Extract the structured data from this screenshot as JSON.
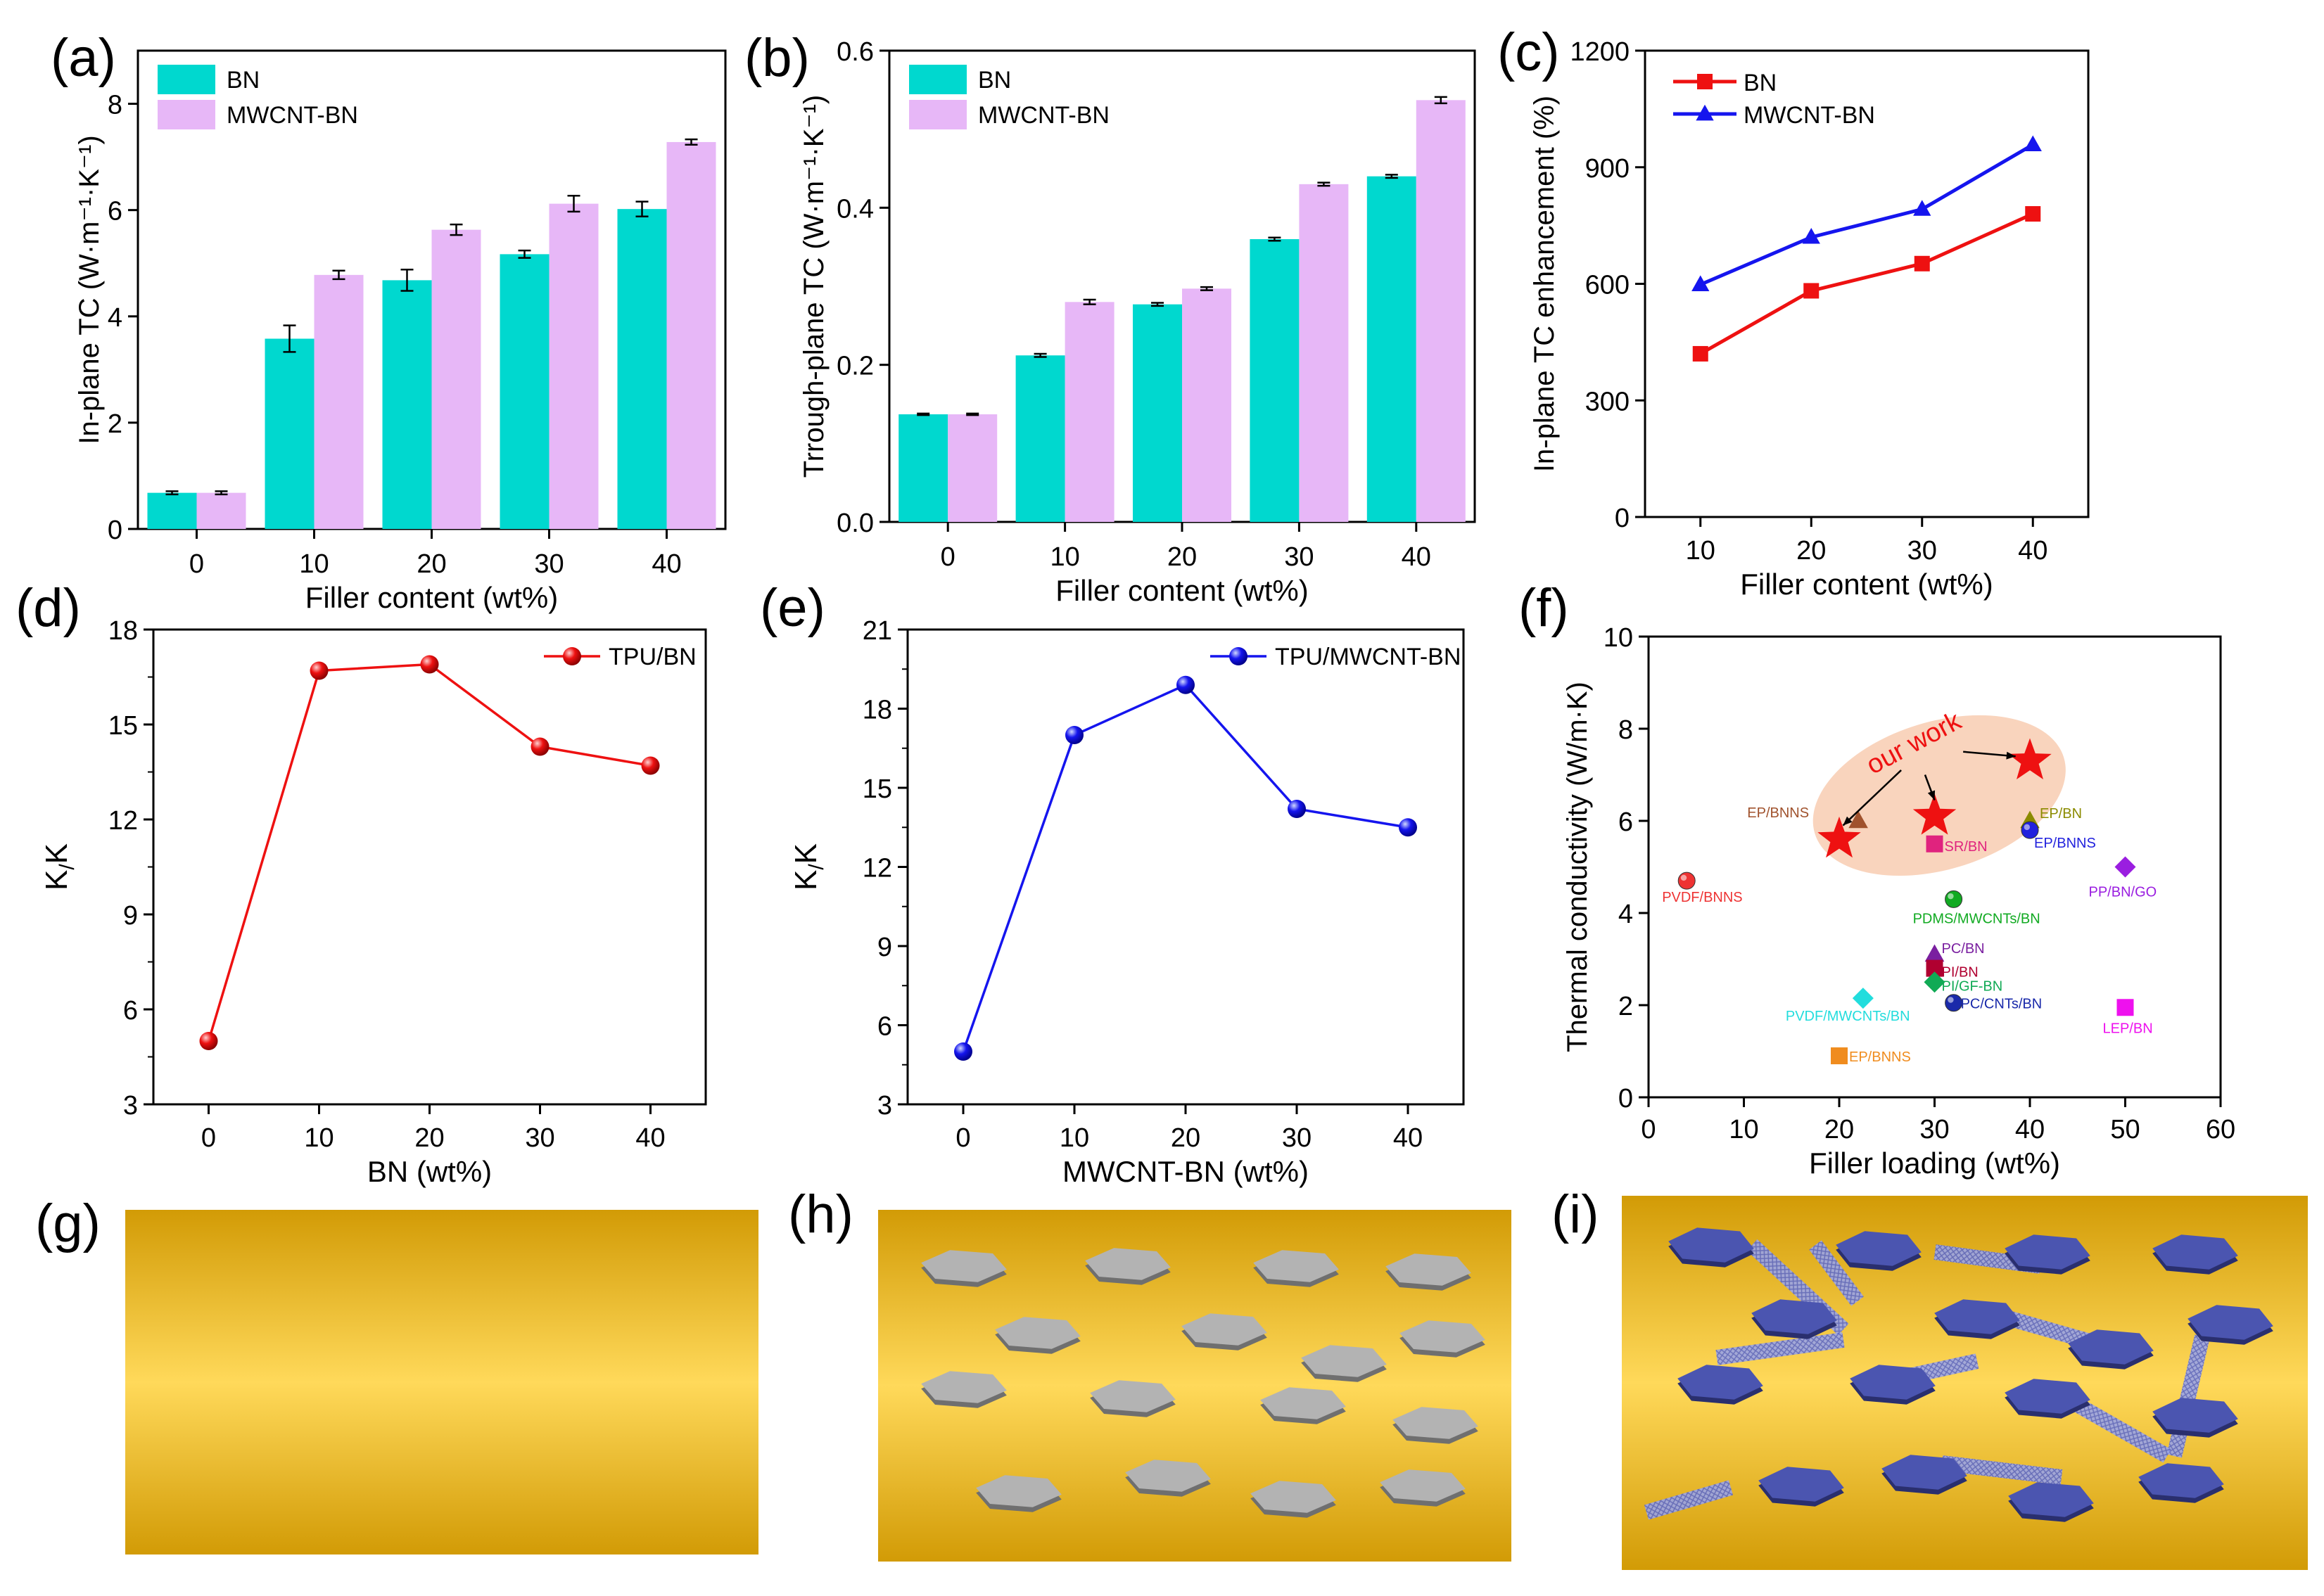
{
  "colors": {
    "bn_bar": "#00d8cf",
    "mw_bar": "#e7b7f7",
    "red": "#ee1111",
    "blue": "#1515ee",
    "gold_edge": "#d29b06",
    "gold_center": "#ffd95a"
  },
  "panel_labels": {
    "a": "(a)",
    "b": "(b)",
    "c": "(c)",
    "d": "(d)",
    "e": "(e)",
    "f": "(f)",
    "g": "(g)",
    "h": "(h)",
    "i": "(i)"
  },
  "chart_data": [
    {
      "id": "a",
      "type": "bar",
      "categories": [
        "0",
        "10",
        "20",
        "30",
        "40"
      ],
      "series": [
        {
          "name": "BN",
          "values": [
            0.68,
            3.58,
            4.68,
            5.17,
            6.02
          ],
          "errors": [
            0.03,
            0.25,
            0.2,
            0.07,
            0.14
          ]
        },
        {
          "name": "MWCNT-BN",
          "values": [
            0.68,
            4.78,
            5.63,
            6.12,
            7.28
          ],
          "errors": [
            0.03,
            0.08,
            0.1,
            0.15,
            0.05
          ]
        }
      ],
      "xlabel": "Filler content (wt%)",
      "ylabel": "In-plane TC (W·m⁻¹·K⁻¹)",
      "ylim": [
        0,
        9
      ],
      "yticks": [
        "0",
        "2",
        "4",
        "6",
        "8"
      ],
      "legend": "top-left"
    },
    {
      "id": "b",
      "type": "bar",
      "categories": [
        "0",
        "10",
        "20",
        "30",
        "40"
      ],
      "series": [
        {
          "name": "BN",
          "values": [
            0.137,
            0.212,
            0.277,
            0.36,
            0.44
          ],
          "errors": [
            0.001,
            0.002,
            0.002,
            0.002,
            0.002
          ]
        },
        {
          "name": "MWCNT-BN",
          "values": [
            0.137,
            0.28,
            0.297,
            0.43,
            0.537
          ],
          "errors": [
            0.001,
            0.003,
            0.002,
            0.002,
            0.004
          ]
        }
      ],
      "xlabel": "Filler content (wt%)",
      "ylabel": "Trrough-plane TC (W·m⁻¹·K⁻¹)",
      "ylim": [
        0,
        0.6
      ],
      "yticks": [
        "0.0",
        "0.2",
        "0.4",
        "0.6"
      ],
      "legend": "top-left"
    },
    {
      "id": "c",
      "type": "line",
      "x": [
        10,
        20,
        30,
        40
      ],
      "series": [
        {
          "name": "BN",
          "values": [
            420,
            582,
            652,
            780
          ]
        },
        {
          "name": "MWCNT-BN",
          "values": [
            598,
            720,
            792,
            958
          ]
        }
      ],
      "xlabel": "Filler content (wt%)",
      "ylabel": "In-plane TC enhancement (%)",
      "xlim": [
        5,
        45
      ],
      "ylim": [
        0,
        1200
      ],
      "xticks": [
        "10",
        "20",
        "30",
        "40"
      ],
      "yticks": [
        "0",
        "300",
        "600",
        "900",
        "1200"
      ],
      "legend": "top-left"
    },
    {
      "id": "d",
      "type": "line",
      "x": [
        0,
        10,
        20,
        30,
        40
      ],
      "series": [
        {
          "name": "TPU/BN",
          "values": [
            5.0,
            16.7,
            16.9,
            14.3,
            13.7
          ]
        }
      ],
      "xlabel": "BN (wt%)",
      "ylabel": "K//K⊥",
      "xlim": [
        -5,
        45
      ],
      "ylim": [
        3,
        18
      ],
      "xticks": [
        "0",
        "10",
        "20",
        "30",
        "40"
      ],
      "yticks": [
        "3",
        "6",
        "9",
        "12",
        "15",
        "18"
      ],
      "legend": "top-right"
    },
    {
      "id": "e",
      "type": "line",
      "x": [
        0,
        10,
        20,
        30,
        40
      ],
      "series": [
        {
          "name": "TPU/MWCNT-BN",
          "values": [
            5.0,
            17.0,
            18.9,
            14.2,
            13.5
          ]
        }
      ],
      "xlabel": "MWCNT-BN (wt%)",
      "ylabel": "K//K⊥",
      "xlim": [
        -5,
        45
      ],
      "ylim": [
        3,
        21
      ],
      "xticks": [
        "0",
        "10",
        "20",
        "30",
        "40"
      ],
      "yticks": [
        "3",
        "6",
        "9",
        "12",
        "15",
        "18",
        "21"
      ],
      "legend": "top-right"
    },
    {
      "id": "f",
      "type": "scatter",
      "xlabel": "Filler loading (wt%)",
      "ylabel": "Thermal conductivity (W/m·K)",
      "xlim": [
        0,
        60
      ],
      "ylim": [
        0,
        10
      ],
      "xticks": [
        "0",
        "10",
        "20",
        "30",
        "40",
        "50",
        "60"
      ],
      "yticks": [
        "0",
        "2",
        "4",
        "6",
        "8",
        "10"
      ],
      "annotation": "our work",
      "points": [
        {
          "label": "PVDF/BNNS",
          "x": 4,
          "y": 4.7,
          "marker": "ball",
          "color": "#ee3333"
        },
        {
          "label": "EP/BNNS",
          "x": 22,
          "y": 6.0,
          "marker": "triangle",
          "color": "#a0522d"
        },
        {
          "label": "",
          "x": 20,
          "y": 5.6,
          "marker": "star",
          "color": "#ee1111"
        },
        {
          "label": "",
          "x": 30,
          "y": 6.1,
          "marker": "star",
          "color": "#ee1111"
        },
        {
          "label": "",
          "x": 40,
          "y": 7.3,
          "marker": "star",
          "color": "#ee1111"
        },
        {
          "label": "SR/BN",
          "x": 30,
          "y": 5.5,
          "marker": "square",
          "color": "#e0237e"
        },
        {
          "label": "EP/BN",
          "x": 40,
          "y": 6.0,
          "marker": "triangle",
          "color": "#8b8b00"
        },
        {
          "label": "EP/BNNS",
          "x": 40,
          "y": 5.8,
          "marker": "ball",
          "color": "#2222dd"
        },
        {
          "label": "PP/BN/GO",
          "x": 50,
          "y": 5.0,
          "marker": "diamond",
          "color": "#9a1ee0"
        },
        {
          "label": "PDMS/MWCNTs/BN",
          "x": 32,
          "y": 4.3,
          "marker": "ball",
          "color": "#11aa22"
        },
        {
          "label": "PC/BN",
          "x": 30,
          "y": 3.1,
          "marker": "triangle",
          "color": "#7a1fa0"
        },
        {
          "label": "PI/BN",
          "x": 30,
          "y": 2.8,
          "marker": "square",
          "color": "#b00030"
        },
        {
          "label": "PI/GF-BN",
          "x": 30,
          "y": 2.5,
          "marker": "diamond",
          "color": "#11aa55"
        },
        {
          "label": "PC/CNTs/BN",
          "x": 32,
          "y": 2.05,
          "marker": "ball",
          "color": "#1a2aaa"
        },
        {
          "label": "PVDF/MWCNTs/BN",
          "x": 22.5,
          "y": 2.15,
          "marker": "diamond",
          "color": "#22dddd"
        },
        {
          "label": "LEP/BN",
          "x": 50,
          "y": 1.95,
          "marker": "square",
          "color": "#ee11ee"
        },
        {
          "label": "EP/BNNS",
          "x": 20,
          "y": 0.9,
          "marker": "square",
          "color": "#f08c1e"
        }
      ]
    }
  ]
}
